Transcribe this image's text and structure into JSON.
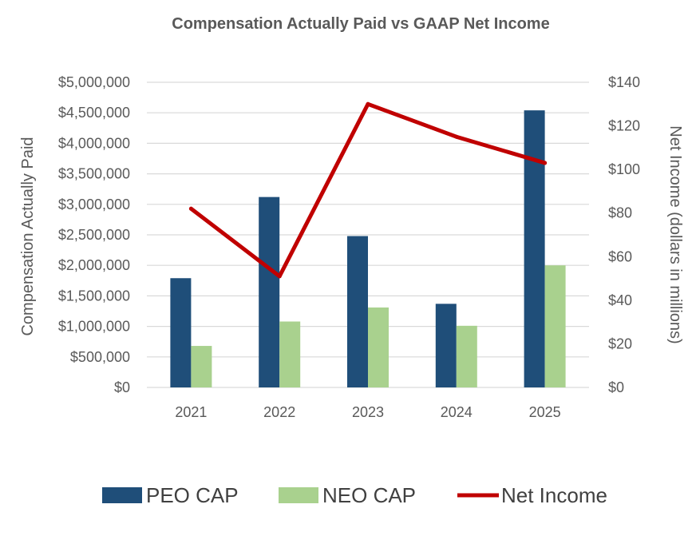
{
  "chart_data": {
    "type": "bar",
    "title": "Compensation Actually Paid vs GAAP Net Income",
    "categories": [
      "2021",
      "2022",
      "2023",
      "2024",
      "2025"
    ],
    "ylabel": "Compensation Actually Paid",
    "y2label": "Net Income (dollars in millions)",
    "ylim": [
      0,
      5000000
    ],
    "y2lim": [
      0,
      140
    ],
    "yticks": [
      0,
      500000,
      1000000,
      1500000,
      2000000,
      2500000,
      3000000,
      3500000,
      4000000,
      4500000,
      5000000
    ],
    "yticklabels": [
      "$0",
      "$500,000",
      "$1,000,000",
      "$1,500,000",
      "$2,000,000",
      "$2,500,000",
      "$3,000,000",
      "$3,500,000",
      "$4,000,000",
      "$4,500,000",
      "$5,000,000"
    ],
    "y2ticks": [
      0,
      20,
      40,
      60,
      80,
      100,
      120,
      140
    ],
    "y2ticklabels": [
      "$0",
      "$20",
      "$40",
      "$60",
      "$80",
      "$100",
      "$120",
      "$140"
    ],
    "grid": true,
    "legend_position": "bottom",
    "series": [
      {
        "name": "PEO CAP",
        "type": "bar",
        "axis": "left",
        "color": "#1f4e79",
        "values": [
          1790000,
          3120000,
          2480000,
          1370000,
          4540000
        ]
      },
      {
        "name": "NEO CAP",
        "type": "bar",
        "axis": "left",
        "color": "#a9d18e",
        "values": [
          680000,
          1080000,
          1310000,
          1010000,
          2000000
        ]
      },
      {
        "name": "Net Income",
        "type": "line",
        "axis": "right",
        "color": "#c00000",
        "values": [
          82,
          51,
          130,
          115,
          103
        ]
      }
    ]
  }
}
